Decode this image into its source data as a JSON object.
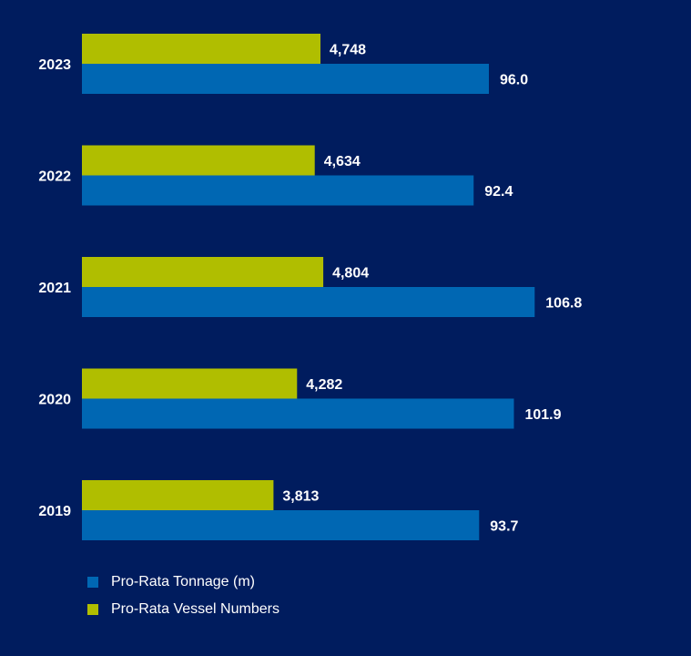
{
  "chart_data": {
    "type": "bar",
    "orientation": "horizontal",
    "categories": [
      "2023",
      "2022",
      "2021",
      "2020",
      "2019"
    ],
    "series": [
      {
        "name": "Pro-Rata Vessel Numbers",
        "values": [
          4748,
          4634,
          4804,
          4282,
          3813
        ],
        "labels": [
          "4,748",
          "4,634",
          "4,804",
          "4,282",
          "3,813"
        ],
        "color": "#b0be00"
      },
      {
        "name": "Pro-Rata Tonnage (m)",
        "values": [
          96.0,
          92.4,
          106.8,
          101.9,
          93.7
        ],
        "labels": [
          "96.0",
          "92.4",
          "106.8",
          "101.9",
          "93.7"
        ],
        "color": "#0067b3"
      }
    ],
    "legend_position": "bottom-left",
    "grid": false,
    "background": "#001c5e"
  },
  "legend": [
    {
      "label": "Pro-Rata Tonnage (m)",
      "color": "#0067b3"
    },
    {
      "label": "Pro-Rata Vessel Numbers",
      "color": "#b0be00"
    }
  ]
}
